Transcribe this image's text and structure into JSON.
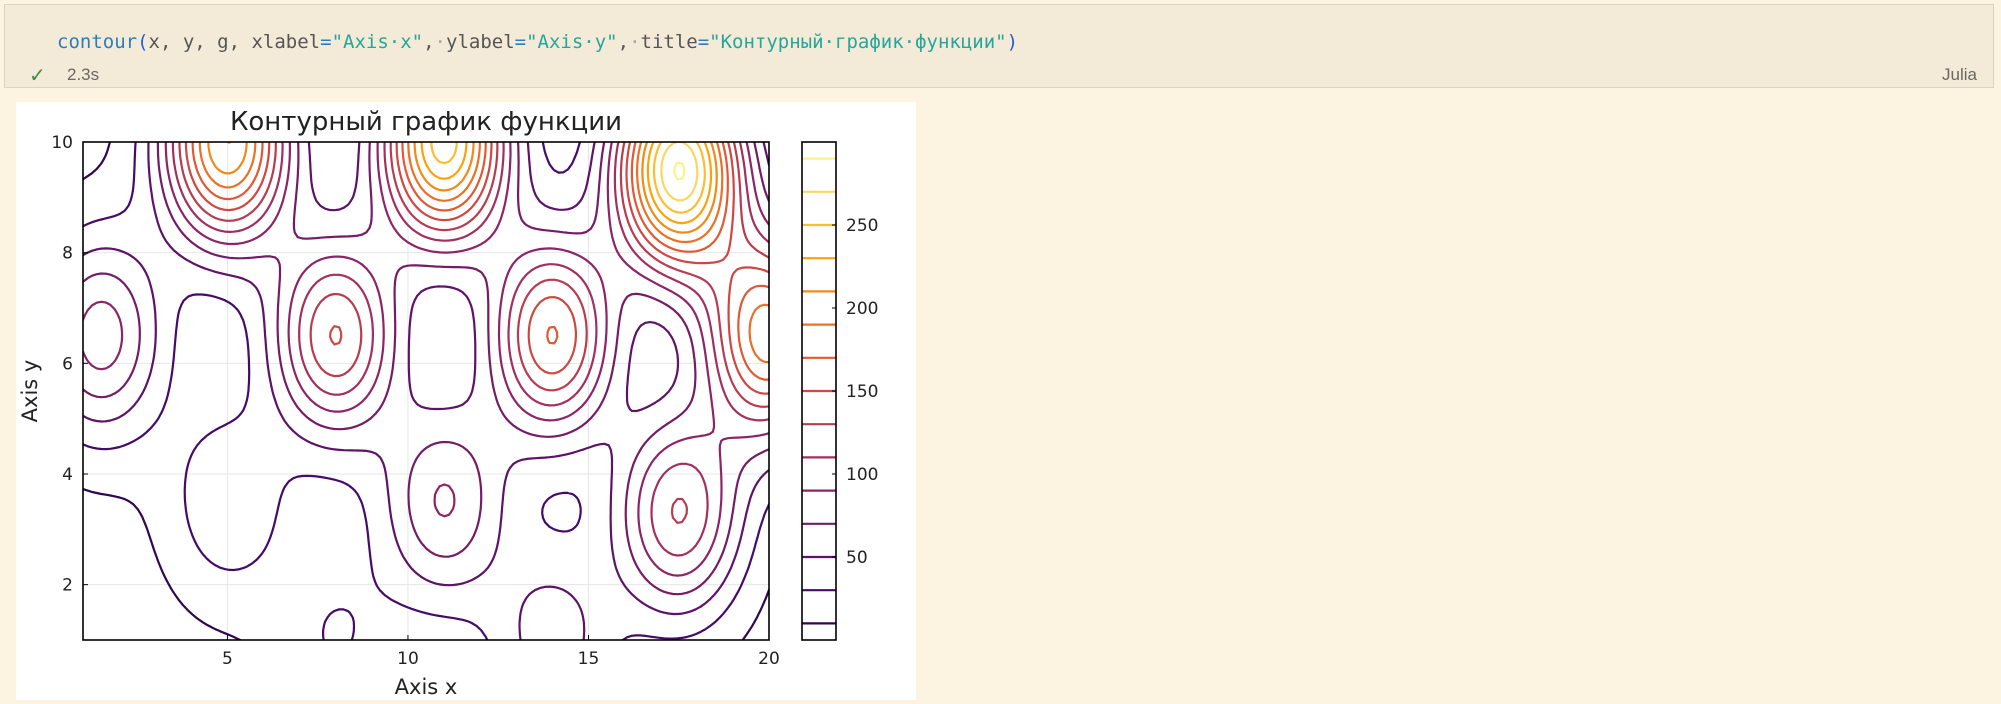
{
  "cell": {
    "code": {
      "fn": "contour",
      "args": "x, y, g, ",
      "xlabel_kw": "xlabel",
      "xlabel_val": "\"Axis·x\"",
      "ylabel_kw": "ylabel",
      "ylabel_val": "\"Axis·y\"",
      "title_kw": "title",
      "title_val": "\"Контурный·график·функции\""
    },
    "status": "success-check-icon",
    "duration": "2.3s",
    "language": "Julia"
  },
  "colors": {
    "background": "#FDF3E1",
    "cell_background": "#F4EAD8",
    "success": "#3E8E41",
    "colormap": [
      "#000004",
      "#420A68",
      "#932667",
      "#DD513A",
      "#FCA50A",
      "#FCFFA4"
    ]
  },
  "chart_data": {
    "type": "contour",
    "title": "Контурный график функции",
    "xlabel": "Axis x",
    "ylabel": "Axis y",
    "xlim": [
      1,
      20
    ],
    "ylim": [
      1,
      10
    ],
    "xticks": [
      5,
      10,
      15,
      20
    ],
    "yticks": [
      2,
      4,
      6,
      8,
      10
    ],
    "colorbar": {
      "ticks": [
        50,
        100,
        150,
        200,
        250
      ],
      "range": [
        0,
        300
      ],
      "levels": [
        10,
        30,
        50,
        70,
        90,
        110,
        130,
        150,
        170,
        190,
        210,
        230,
        250,
        270,
        290
      ]
    },
    "peaks": [
      {
        "x": 5,
        "y": 10,
        "value": 230
      },
      {
        "x": 11,
        "y": 10,
        "value": 260
      },
      {
        "x": 17.5,
        "y": 9.5,
        "value": 290
      },
      {
        "x": 1.5,
        "y": 6.5,
        "value": 100
      },
      {
        "x": 8,
        "y": 6.5,
        "value": 150
      },
      {
        "x": 14,
        "y": 6.5,
        "value": 170
      },
      {
        "x": 20,
        "y": 6.5,
        "value": 200
      },
      {
        "x": 5,
        "y": 3.5,
        "value": 45
      },
      {
        "x": 11,
        "y": 3.5,
        "value": 90
      },
      {
        "x": 17.5,
        "y": 3.3,
        "value": 130
      },
      {
        "x": 8,
        "y": 1,
        "value": 30
      },
      {
        "x": 14,
        "y": 1,
        "value": 60
      }
    ],
    "grid": true,
    "legend": "none"
  }
}
